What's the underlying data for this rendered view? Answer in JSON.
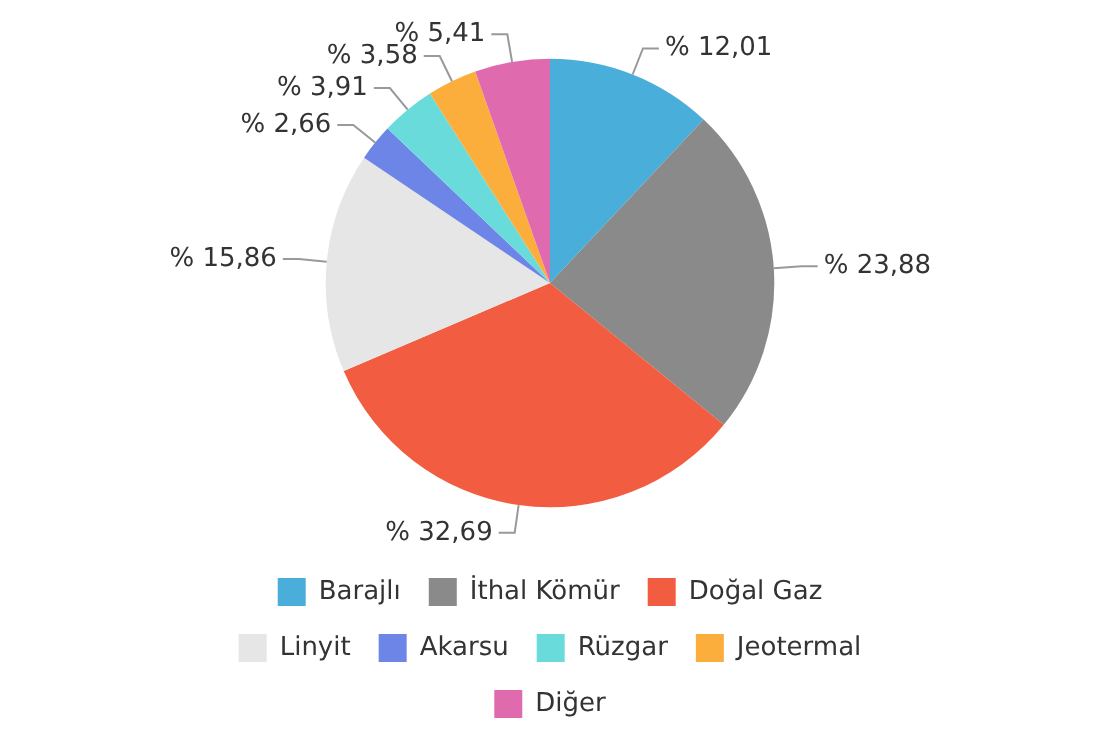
{
  "chart_data": {
    "type": "pie",
    "categories": [
      "Barajlı",
      "İthal Kömür",
      "Doğal Gaz",
      "Linyit",
      "Akarsu",
      "Rüzgar",
      "Jeotermal",
      "Diğer"
    ],
    "values": [
      12.01,
      23.88,
      32.69,
      15.86,
      2.66,
      3.91,
      3.58,
      5.41
    ],
    "colors": [
      "#4aaedb",
      "#8a8a8a",
      "#f25c40",
      "#e6e6e6",
      "#6d85e6",
      "#6adbdb",
      "#fbae3c",
      "#e06aae"
    ],
    "value_labels": [
      "% 12,01",
      "% 23,88",
      "% 32,69",
      "% 15,86",
      "% 2,66",
      "% 3,91",
      "% 3,58",
      "% 5,41"
    ],
    "legend": "bottom"
  }
}
